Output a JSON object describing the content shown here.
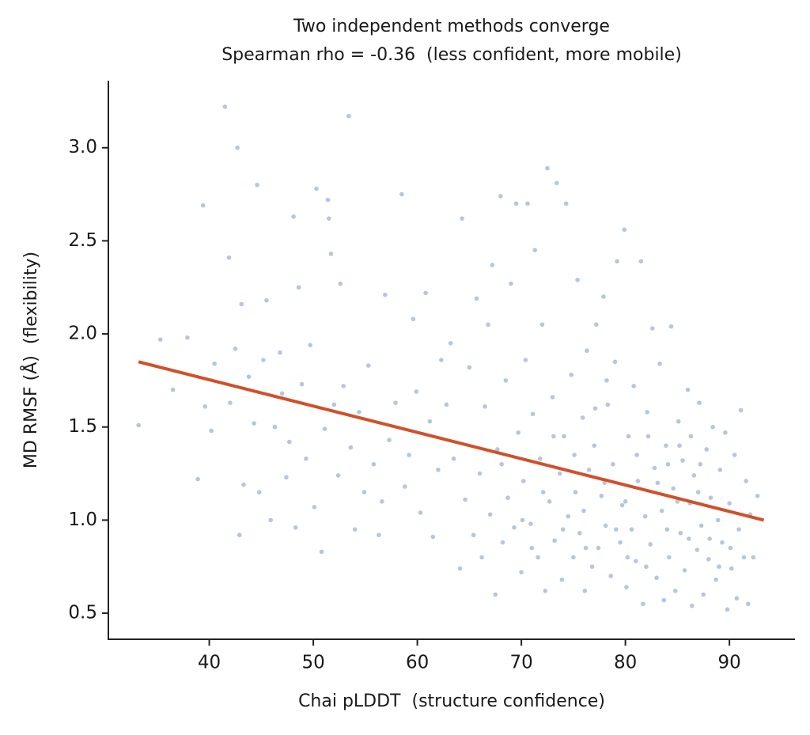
{
  "chart_data": {
    "type": "scatter",
    "title": "Two independent methods converge",
    "subtitle": "Spearman rho = -0.36  (less confident, more mobile)",
    "x_label": "Chai pLDDT  (structure confidence)",
    "y_label": "MD RMSF (Å)  (flexibility)",
    "xlim": [
      30.3,
      96.3
    ],
    "ylim": [
      0.36,
      3.36
    ],
    "xticks": [
      40,
      50,
      60,
      70,
      80,
      90
    ],
    "yticks": [
      0.5,
      {
        "value": 1.0,
        "label": "1.0"
      },
      1.5,
      {
        "value": 2.0,
        "label": "2.0"
      },
      2.5,
      {
        "value": 3.0,
        "label": "3.0"
      }
    ],
    "color": "#6b8fb8",
    "x": [
      33.2,
      35.3,
      36.5,
      37.9,
      38.9,
      39.4,
      39.6,
      40.2,
      40.5,
      41.5,
      41.9,
      42.0,
      42.5,
      42.7,
      42.9,
      43.1,
      43.3,
      43.8,
      44.3,
      44.6,
      44.8,
      45.2,
      45.5,
      45.9,
      46.3,
      46.8,
      47.0,
      47.4,
      47.7,
      48.1,
      48.3,
      48.6,
      48.9,
      49.3,
      49.7,
      50.1,
      50.3,
      50.8,
      51.1,
      51.4,
      51.5,
      51.7,
      52.0,
      52.4,
      52.6,
      52.9,
      53.4,
      53.6,
      54.0,
      54.4,
      54.9,
      55.3,
      55.8,
      56.3,
      56.6,
      56.9,
      57.3,
      57.9,
      58.5,
      58.8,
      59.2,
      59.6,
      59.9,
      60.3,
      60.8,
      61.2,
      61.5,
      62.0,
      62.3,
      62.8,
      63.2,
      63.5,
      64.1,
      64.3,
      64.6,
      65.0,
      65.4,
      65.7,
      66.0,
      66.2,
      66.5,
      66.8,
      67.0,
      67.2,
      67.5,
      67.7,
      68.0,
      68.2,
      68.5,
      68.7,
      69.0,
      69.3,
      69.5,
      69.7,
      70.0,
      70.2,
      70.4,
      70.6,
      70.9,
      71.1,
      71.3,
      71.6,
      71.8,
      72.0,
      72.3,
      72.5,
      72.7,
      73.0,
      73.2,
      73.4,
      73.7,
      73.9,
      74.1,
      74.3,
      74.5,
      74.8,
      75.0,
      75.2,
      75.4,
      75.6,
      75.9,
      76.1,
      76.3,
      76.5,
      76.8,
      77.0,
      77.2,
      77.4,
      77.7,
      77.9,
      78.1,
      78.3,
      78.6,
      78.8,
      79.0,
      79.2,
      79.5,
      79.7,
      79.9,
      80.1,
      80.3,
      80.6,
      80.8,
      81.0,
      81.2,
      81.5,
      81.7,
      81.9,
      82.1,
      82.4,
      82.6,
      82.8,
      83.0,
      83.3,
      83.5,
      83.7,
      83.9,
      84.2,
      84.4,
      84.6,
      84.8,
      85.1,
      85.3,
      85.5,
      85.7,
      86.0,
      86.2,
      86.4,
      86.6,
      86.9,
      87.1,
      87.3,
      87.5,
      87.8,
      88.0,
      88.2,
      88.4,
      88.7,
      88.9,
      89.1,
      89.3,
      89.6,
      89.8,
      90.0,
      90.2,
      90.5,
      90.7,
      90.9,
      91.1,
      91.4,
      91.6,
      91.8,
      92.0,
      92.3,
      92.7,
      68.1,
      70.1,
      72.1,
      74.0,
      75.1,
      76.0,
      77.1,
      78.0,
      79.1,
      80.0,
      81.1,
      82.0,
      83.1,
      84.0,
      85.0,
      86.1,
      87.0,
      88.1,
      89.0,
      90.1,
      73.1,
      78.2,
      82.2,
      85.2,
      87.2,
      71.0,
      76.2,
      80.2,
      84.1,
      86.3
    ],
    "y": [
      1.51,
      1.97,
      1.7,
      1.98,
      1.22,
      2.69,
      1.61,
      1.48,
      1.84,
      3.22,
      2.41,
      1.63,
      1.92,
      3.0,
      0.92,
      2.16,
      1.19,
      1.77,
      1.52,
      2.8,
      1.15,
      1.86,
      2.18,
      1.0,
      1.5,
      1.9,
      1.68,
      1.23,
      1.42,
      2.63,
      0.96,
      2.25,
      1.73,
      1.33,
      1.94,
      1.07,
      2.78,
      0.83,
      1.49,
      2.72,
      2.62,
      2.43,
      1.62,
      1.24,
      2.27,
      1.72,
      3.17,
      1.39,
      0.95,
      1.58,
      1.15,
      1.83,
      1.3,
      0.92,
      1.1,
      2.21,
      1.43,
      1.63,
      2.75,
      1.18,
      1.35,
      2.08,
      1.69,
      1.04,
      2.22,
      1.53,
      0.91,
      1.27,
      1.86,
      1.62,
      1.95,
      1.33,
      0.74,
      2.62,
      1.11,
      1.82,
      0.92,
      2.19,
      1.25,
      0.8,
      1.61,
      2.05,
      1.03,
      2.37,
      0.6,
      1.38,
      2.74,
      0.88,
      1.75,
      1.12,
      2.27,
      0.96,
      2.7,
      1.47,
      0.72,
      1.21,
      1.86,
      2.7,
      0.98,
      1.57,
      2.45,
      0.8,
      1.33,
      2.05,
      0.62,
      2.89,
      1.1,
      1.66,
      0.89,
      2.81,
      1.25,
      0.68,
      1.45,
      2.7,
      1.02,
      1.78,
      0.8,
      1.15,
      2.29,
      0.93,
      1.55,
      0.62,
      1.91,
      1.27,
      0.75,
      1.4,
      2.05,
      0.85,
      1.13,
      2.2,
      0.97,
      1.62,
      0.7,
      1.3,
      1.85,
      2.39,
      0.88,
      1.08,
      2.56,
      0.64,
      1.45,
      0.95,
      1.72,
      0.78,
      1.21,
      2.39,
      0.55,
      1.02,
      1.58,
      0.87,
      2.03,
      1.28,
      0.69,
      1.84,
      1.05,
      0.57,
      1.4,
      0.8,
      2.04,
      1.17,
      0.62,
      1.53,
      0.93,
      1.32,
      0.73,
      1.7,
      1.09,
      0.54,
      1.24,
      0.84,
      1.63,
      0.97,
      0.6,
      1.38,
      0.79,
      1.12,
      1.5,
      0.68,
      1.0,
      1.27,
      0.88,
      1.47,
      0.52,
      1.09,
      0.74,
      1.35,
      0.58,
      0.95,
      1.59,
      0.8,
      1.21,
      0.55,
      1.03,
      0.8,
      1.13,
      1.3,
      1.0,
      1.15,
      0.95,
      1.35,
      1.05,
      1.6,
      1.2,
      0.95,
      1.1,
      1.35,
      0.75,
      1.2,
      0.95,
      1.1,
      0.9,
      1.15,
      0.9,
      0.75,
      0.85,
      1.45,
      1.75,
      1.45,
      1.4,
      1.3,
      0.85,
      0.85,
      0.8,
      1.3,
      1.45
    ],
    "trend": {
      "x": [
        33.2,
        93.3
      ],
      "y": [
        1.85,
        1.0
      ],
      "color": "#d1502a"
    }
  }
}
